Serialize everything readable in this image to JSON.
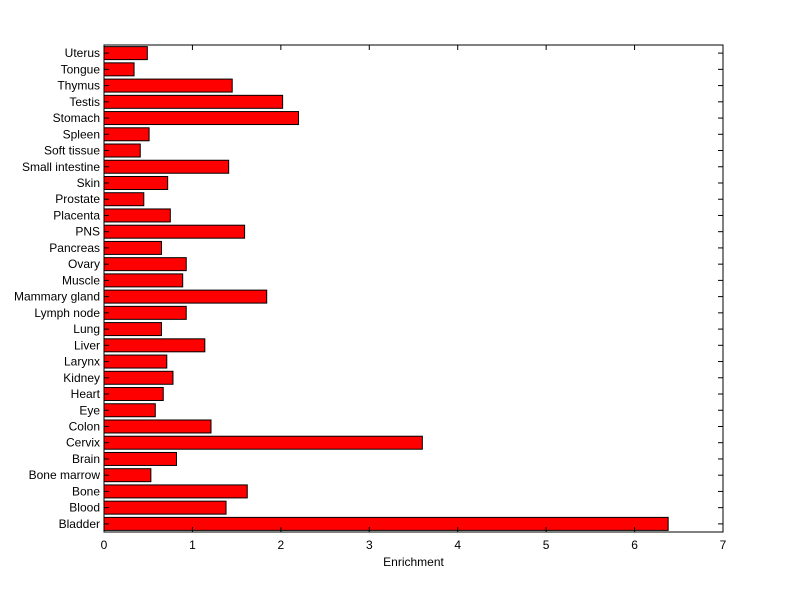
{
  "chart_data": {
    "type": "bar",
    "orientation": "horizontal",
    "xlabel": "Enrichment",
    "ylabel": "",
    "title": "",
    "xlim": [
      0,
      7
    ],
    "xticks": [
      0,
      1,
      2,
      3,
      4,
      5,
      6,
      7
    ],
    "grid": false,
    "bar_color": "#ff0000",
    "bar_edge_color": "#000000",
    "categories": [
      "Bladder",
      "Blood",
      "Bone",
      "Bone marrow",
      "Brain",
      "Cervix",
      "Colon",
      "Eye",
      "Heart",
      "Kidney",
      "Larynx",
      "Liver",
      "Lung",
      "Lymph node",
      "Mammary gland",
      "Muscle",
      "Ovary",
      "Pancreas",
      "PNS",
      "Placenta",
      "Prostate",
      "Skin",
      "Small intestine",
      "Soft tissue",
      "Spleen",
      "Stomach",
      "Testis",
      "Thymus",
      "Tongue",
      "Uterus"
    ],
    "values": [
      6.38,
      1.38,
      1.62,
      0.53,
      0.82,
      3.6,
      1.21,
      0.58,
      0.67,
      0.78,
      0.71,
      1.14,
      0.65,
      0.93,
      1.84,
      0.89,
      0.93,
      0.65,
      1.59,
      0.75,
      0.45,
      0.72,
      1.41,
      0.41,
      0.51,
      2.2,
      2.02,
      1.45,
      0.34,
      0.49
    ]
  }
}
